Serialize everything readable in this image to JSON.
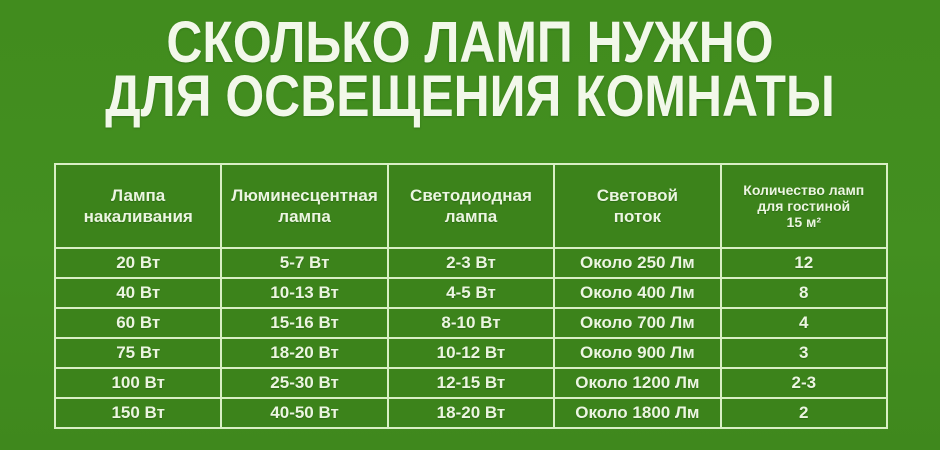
{
  "title": {
    "line1": "СКОЛЬКО ЛАМП НУЖНО",
    "line2": "ДЛЯ ОСВЕЩЕНИЯ КОМНАТЫ"
  },
  "colors": {
    "background": "#418c1e",
    "cell_background": "#3c831b",
    "border": "#d9efc5",
    "text": "#ecf5e1"
  },
  "table": {
    "header_display": [
      "Лампа\nнакаливания",
      "Люминесцентная\nлампа",
      "Светодиодная\nлампа",
      "Световой\nпоток",
      "Количество ламп\nдля гостиной\n15 м²"
    ]
  },
  "chart_data": {
    "type": "table",
    "title": "СКОЛЬКО ЛАМП НУЖНО ДЛЯ ОСВЕЩЕНИЯ КОМНАТЫ",
    "columns": [
      "Лампа накаливания",
      "Люминесцентная лампа",
      "Светодиодная лампа",
      "Световой поток",
      "Количество ламп для гостиной 15 м²"
    ],
    "rows": [
      [
        "20 Вт",
        "5-7 Вт",
        "2-3 Вт",
        "Около 250 Лм",
        "12"
      ],
      [
        "40 Вт",
        "10-13 Вт",
        "4-5 Вт",
        "Около 400 Лм",
        "8"
      ],
      [
        "60 Вт",
        "15-16 Вт",
        "8-10 Вт",
        "Около 700 Лм",
        "4"
      ],
      [
        "75 Вт",
        "18-20 Вт",
        "10-12 Вт",
        "Около 900 Лм",
        "3"
      ],
      [
        "100 Вт",
        "25-30 Вт",
        "12-15 Вт",
        "Около 1200 Лм",
        "2-3"
      ],
      [
        "150 Вт",
        "40-50 Вт",
        "18-20 Вт",
        "Около 1800 Лм",
        "2"
      ]
    ],
    "layout": {
      "grid": true,
      "header_row": true,
      "background": "green"
    }
  }
}
